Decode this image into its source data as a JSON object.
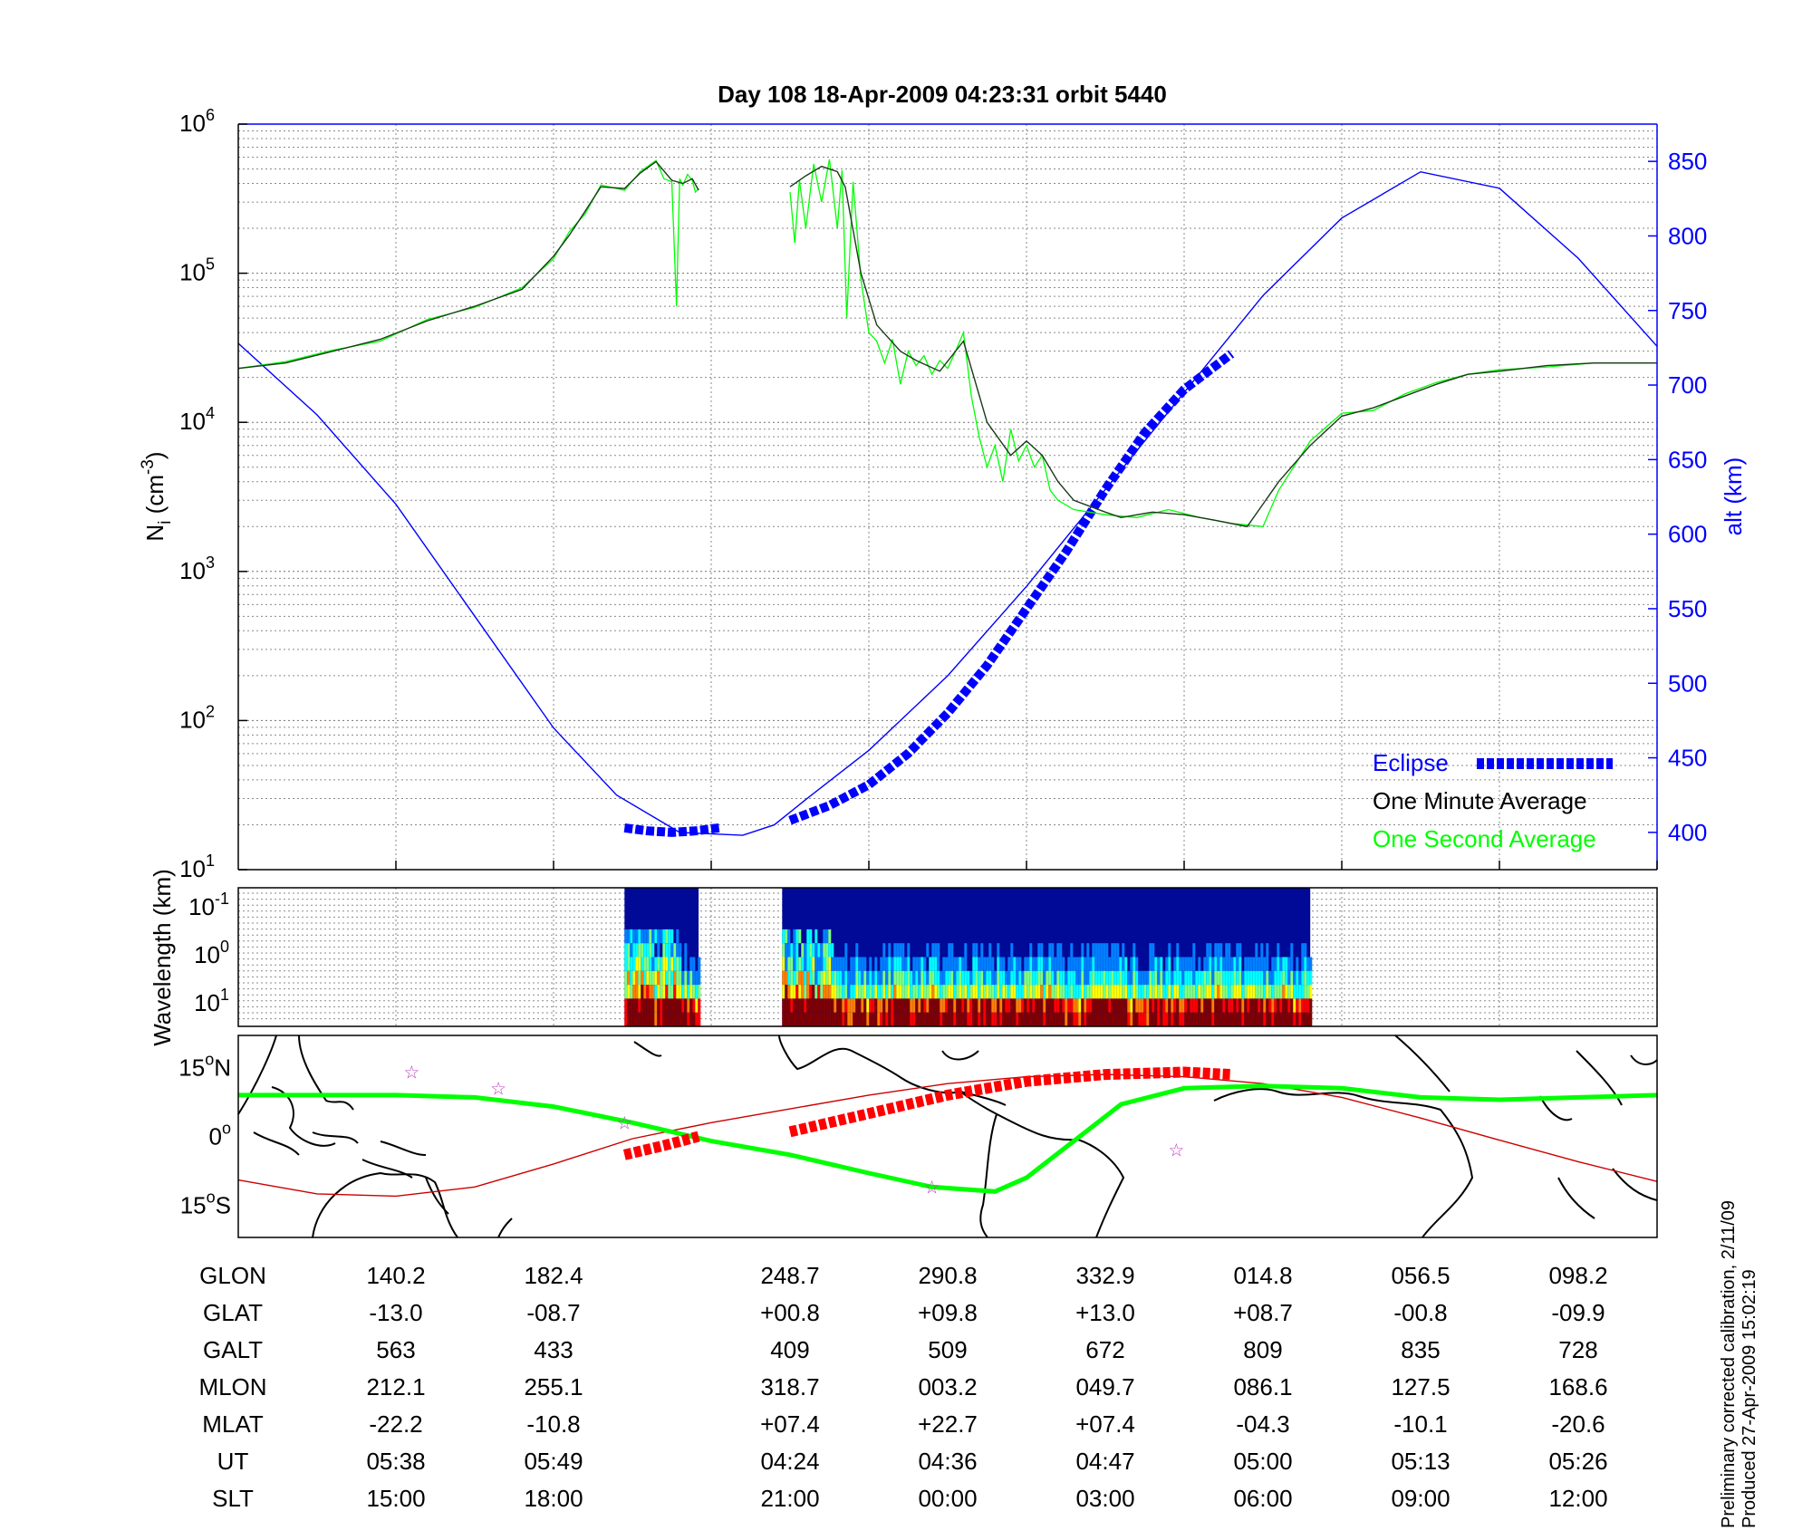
{
  "chart_data": [
    {
      "panel": "density",
      "type": "line",
      "title": "Day 108  18-Apr-2009 04:23:31   orbit 5440",
      "ylabel_main": "N",
      "ylabel_sub": "i",
      "ylabel_unit_open": " (cm",
      "ylabel_unit_exp": "-3",
      "ylabel_unit_close": ")",
      "ylabel_right": "alt (km)",
      "yscale": "log",
      "ylim": [
        10,
        1000000
      ],
      "y_tick_labels": [
        {
          "base": "10",
          "exp": "1",
          "value": 10
        },
        {
          "base": "10",
          "exp": "2",
          "value": 100
        },
        {
          "base": "10",
          "exp": "3",
          "value": 1000
        },
        {
          "base": "10",
          "exp": "4",
          "value": 10000
        },
        {
          "base": "10",
          "exp": "5",
          "value": 100000
        },
        {
          "base": "10",
          "exp": "6",
          "value": 1000000
        }
      ],
      "y2lim": [
        375,
        875
      ],
      "y2_ticks": [
        "400",
        "450",
        "500",
        "550",
        "600",
        "650",
        "700",
        "750",
        "800",
        "850"
      ],
      "x_ticks": [
        0,
        1,
        2,
        3,
        4,
        5,
        6,
        7,
        8
      ],
      "xlim": [
        -1,
        8
      ],
      "grid": true,
      "legend_position": "bottom-right",
      "legend": [
        {
          "label": "Eclipse",
          "color": "#0000ff"
        },
        {
          "label": "One Minute Average",
          "color": "#000000"
        },
        {
          "label": "One Second Average",
          "color": "#00ff00"
        }
      ],
      "series": [
        {
          "name": "alt (km)",
          "axis": "right",
          "color": "#0000ff",
          "x": [
            -1.0,
            -0.5,
            0.0,
            0.5,
            1.0,
            1.4,
            1.8,
            2.2,
            2.4,
            2.6,
            3.0,
            3.5,
            4.0,
            4.5,
            5.0,
            5.5,
            6.0,
            6.5,
            7.0,
            7.5,
            8.0
          ],
          "y": [
            728,
            680,
            620,
            545,
            470,
            425,
            400,
            398,
            405,
            422,
            455,
            505,
            565,
            630,
            695,
            760,
            812,
            843,
            832,
            785,
            726
          ]
        },
        {
          "name": "Eclipse",
          "axis": "right",
          "color": "#0000ff",
          "style": "dashed",
          "segments": [
            {
              "x": [
                1.45,
                1.6,
                1.75,
                1.9,
                2.05
              ],
              "y": [
                403,
                401,
                400,
                401,
                403
              ]
            },
            {
              "x": [
                2.5,
                2.75,
                3.0,
                3.25,
                3.5,
                3.75,
                4.0,
                4.25,
                4.5,
                4.75,
                5.0,
                5.3
              ],
              "y": [
                408,
                418,
                432,
                453,
                480,
                512,
                550,
                588,
                630,
                668,
                697,
                721
              ]
            }
          ]
        },
        {
          "name": "One Minute Average",
          "axis": "left",
          "color": "#000000",
          "segments": [
            {
              "x": [
                -1.0,
                -0.7,
                -0.4,
                -0.1,
                0.2,
                0.5,
                0.8,
                1.0,
                1.1,
                1.2,
                1.3,
                1.45,
                1.55,
                1.65,
                1.75,
                1.82,
                1.88,
                1.92
              ],
              "y": [
                23000,
                25000,
                30000,
                36000,
                48000,
                60000,
                78000,
                130000,
                180000,
                260000,
                380000,
                370000,
                470000,
                560000,
                420000,
                400000,
                430000,
                360000
              ]
            },
            {
              "x": [
                2.5,
                2.6,
                2.7,
                2.8,
                2.85,
                2.95,
                3.05,
                3.2,
                3.3,
                3.45,
                3.6,
                3.75,
                3.9,
                4.0,
                4.1,
                4.2,
                4.3,
                4.5,
                4.6,
                4.8,
                5.0,
                5.2,
                5.4,
                5.6,
                5.8,
                6.0,
                6.2,
                6.4,
                6.6,
                6.8,
                7.0,
                7.3,
                7.6,
                8.0
              ],
              "y": [
                380000,
                450000,
                520000,
                480000,
                380000,
                100000,
                45000,
                30000,
                26000,
                22000,
                35000,
                10000,
                6000,
                7500,
                6000,
                4000,
                3000,
                2500,
                2300,
                2500,
                2400,
                2200,
                2000,
                4000,
                7000,
                11000,
                12500,
                15000,
                18000,
                21000,
                22000,
                24000,
                25000,
                25000
              ]
            }
          ]
        },
        {
          "name": "One Second Average",
          "axis": "left",
          "color": "#00ff00",
          "segments": [
            {
              "x": [
                -1.0,
                -0.7,
                -0.4,
                -0.1,
                0.2,
                0.5,
                0.8,
                1.0,
                1.1,
                1.2,
                1.3,
                1.45,
                1.55,
                1.65,
                1.7,
                1.75,
                1.78,
                1.8,
                1.82,
                1.85,
                1.88,
                1.9,
                1.92
              ],
              "y": [
                23000,
                25500,
                30500,
                35000,
                49000,
                59000,
                80000,
                125000,
                190000,
                250000,
                390000,
                360000,
                480000,
                570000,
                430000,
                410000,
                60000,
                430000,
                390000,
                460000,
                420000,
                350000,
                370000
              ]
            },
            {
              "x": [
                2.5,
                2.53,
                2.56,
                2.6,
                2.65,
                2.7,
                2.75,
                2.8,
                2.83,
                2.86,
                2.9,
                2.95,
                3.0,
                3.05,
                3.1,
                3.15,
                3.2,
                3.25,
                3.3,
                3.35,
                3.4,
                3.45,
                3.5,
                3.55,
                3.6,
                3.65,
                3.7,
                3.75,
                3.8,
                3.85,
                3.9,
                3.95,
                4.0,
                4.05,
                4.1,
                4.15,
                4.2,
                4.3,
                4.5,
                4.7,
                4.9,
                5.1,
                5.3,
                5.5,
                5.6,
                5.8,
                6.0,
                6.2,
                6.4,
                6.6,
                6.8,
                7.0,
                7.3,
                7.6,
                8.0
              ],
              "y": [
                350000,
                160000,
                420000,
                200000,
                540000,
                300000,
                580000,
                200000,
                490000,
                50000,
                410000,
                90000,
                40000,
                35000,
                25000,
                36000,
                18000,
                30000,
                24000,
                28000,
                21000,
                26000,
                23000,
                30000,
                40000,
                15000,
                8000,
                5000,
                7000,
                4000,
                9000,
                5500,
                7000,
                5000,
                6000,
                3500,
                3000,
                2600,
                2400,
                2300,
                2600,
                2300,
                2100,
                2000,
                3500,
                7500,
                11500,
                12000,
                15500,
                18500,
                21000,
                22500,
                23500,
                25000,
                25000
              ]
            }
          ]
        }
      ]
    },
    {
      "panel": "spectrogram",
      "type": "heatmap",
      "ylabel": "Wavelength (km)",
      "y_tick_labels": [
        {
          "base": "10",
          "exp": "-1"
        },
        {
          "base": "10",
          "exp": "0"
        },
        {
          "base": "10",
          "exp": "1"
        }
      ],
      "coverage_x": [
        [
          1.45,
          1.92
        ],
        [
          2.45,
          5.8
        ]
      ],
      "colormap": [
        "#00007f",
        "#0000ff",
        "#007fff",
        "#00ffff",
        "#7fff7f",
        "#ffff00",
        "#ff7f00",
        "#ff0000",
        "#7f0000"
      ]
    },
    {
      "panel": "map",
      "type": "line",
      "xlim": [
        -1,
        8
      ],
      "ylim": [
        -22,
        22
      ],
      "y_tick_labels": [
        {
          "value": 15,
          "num": "15",
          "deg": "o",
          "hemi": "N"
        },
        {
          "value": 0,
          "num": "0",
          "deg": "o",
          "hemi": ""
        },
        {
          "value": -15,
          "num": "15",
          "deg": "o",
          "hemi": "S"
        }
      ],
      "series": [
        {
          "name": "magnetic equator",
          "color": "#00ff00",
          "x": [
            -1.0,
            0.0,
            0.5,
            1.0,
            1.5,
            2.0,
            2.5,
            3.0,
            3.4,
            3.8,
            4.0,
            4.3,
            4.6,
            5.0,
            5.5,
            6.0,
            6.5,
            7.0,
            7.5,
            8.0
          ],
          "y": [
            9,
            9,
            8.5,
            6.5,
            3,
            -1,
            -4,
            -8,
            -11,
            -12,
            -9,
            -1,
            7,
            10.5,
            11,
            10.5,
            8.5,
            8,
            8.5,
            9
          ]
        },
        {
          "name": "orbit track",
          "color": "#cc0000",
          "x": [
            -1.0,
            -0.5,
            0.0,
            0.5,
            1.0,
            1.5,
            2.0,
            2.5,
            3.0,
            3.5,
            4.0,
            4.5,
            5.0,
            5.5,
            6.0,
            6.5,
            7.0,
            7.5,
            8.0
          ],
          "y": [
            -9.5,
            -12.5,
            -13,
            -11,
            -6,
            -0.5,
            3,
            6,
            9,
            11.5,
            13,
            13.5,
            13,
            11.5,
            8.5,
            4,
            -0.8,
            -5.5,
            -9.8
          ]
        },
        {
          "name": "Eclipse",
          "color": "#ff0000",
          "style": "dashed",
          "segments": [
            {
              "x": [
                1.45,
                1.7,
                1.92
              ],
              "y": [
                -4,
                -2,
                0
              ]
            },
            {
              "x": [
                2.5,
                3.0,
                3.5,
                4.0,
                4.5,
                5.0,
                5.3
              ],
              "y": [
                1,
                5,
                9,
                12,
                13.5,
                14,
                13.5
              ]
            }
          ]
        },
        {
          "name": "stars",
          "color": "#c040c0",
          "type": "scatter",
          "x": [
            0.1,
            0.65,
            1.45,
            3.4,
            4.95
          ],
          "y": [
            14,
            10.5,
            3,
            -11,
            -3
          ]
        }
      ]
    }
  ],
  "table": {
    "row_labels": [
      "GLON",
      "GLAT",
      "GALT",
      "MLON",
      "MLAT",
      "UT",
      "SLT"
    ],
    "columns": [
      {
        "x": 0,
        "values": [
          "140.2",
          "-13.0",
          "563",
          "212.1",
          "-22.2",
          "05:38",
          "15:00"
        ]
      },
      {
        "x": 1,
        "values": [
          "182.4",
          "-08.7",
          "433",
          "255.1",
          "-10.8",
          "05:49",
          "18:00"
        ]
      },
      {
        "x": 2.5,
        "values": [
          "248.7",
          "+00.8",
          "409",
          "318.7",
          "+07.4",
          "04:24",
          "21:00"
        ]
      },
      {
        "x": 3.5,
        "values": [
          "290.8",
          "+09.8",
          "509",
          "003.2",
          "+22.7",
          "04:36",
          "00:00"
        ]
      },
      {
        "x": 4.5,
        "values": [
          "332.9",
          "+13.0",
          "672",
          "049.7",
          "+07.4",
          "04:47",
          "03:00"
        ]
      },
      {
        "x": 5.5,
        "values": [
          "014.8",
          "+08.7",
          "809",
          "086.1",
          "-04.3",
          "05:00",
          "06:00"
        ]
      },
      {
        "x": 6.5,
        "values": [
          "056.5",
          "-00.8",
          "835",
          "127.5",
          "-10.1",
          "05:13",
          "09:00"
        ]
      },
      {
        "x": 7.5,
        "values": [
          "098.2",
          "-09.9",
          "728",
          "168.6",
          "-20.6",
          "05:26",
          "12:00"
        ]
      }
    ]
  },
  "footnote": {
    "line1": "Preliminary corrected calibration, 2/11/09",
    "line2": "Produced 27-Apr-2009 15:02:19"
  }
}
